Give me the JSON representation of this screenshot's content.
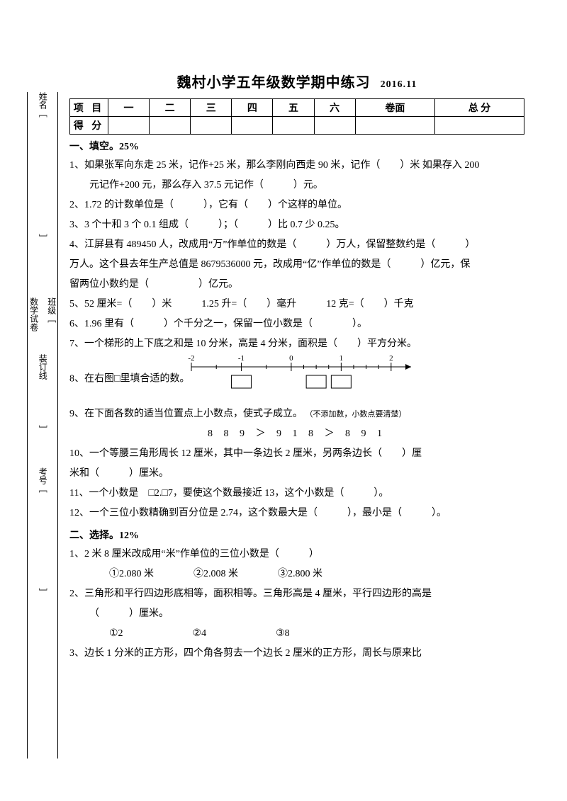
{
  "title": "魏村小学五年级数学期中练习",
  "title_date": "2016.11",
  "sideband": {
    "name_label": "姓名﹇",
    "class_label1": "数学试卷",
    "class_label2": "班级﹇",
    "binding": "装订线",
    "binding2": "﹈",
    "num_label": "考号﹇",
    "dash1": "﹈",
    "dash2": "﹈"
  },
  "score_table": {
    "headers": [
      "项 目",
      "一",
      "二",
      "三",
      "四",
      "五",
      "六",
      "卷面",
      "总 分"
    ],
    "row_label": "得 分"
  },
  "sect1": "一、填空。25%",
  "q1a": "1、如果张军向东走 25 米，记作+25 米，那么李刚向西走 90 米，记作（　　）米 如果存入 200",
  "q1b": "元记作+200 元，那么存入 37.5 元记作（　　　）元。",
  "q2": "2、1.72 的计数单位是（　　　），它有（　　）个这样的单位。",
  "q3": "3、3 个十和 3 个 0.1 组成（　　　）；（　　　）比 0.7 少 0.25。",
  "q4a": "4、江屏县有 489450 人，改成用“万”作单位的数是（　　　）万人，保留整数约是（　　　）",
  "q4b": "万人。这个县去年生产总值是 8679536000 元，改成用“亿”作单位的数是（　　　）亿元，保",
  "q4c": "留两位小数约是（　　　　　）亿元。",
  "q5": "5、52 厘米=（　　）米　　　1.25 升=（　　）毫升　　　12 克=（　　）千克",
  "q6": "6、1.96 里有（　　　）个千分之一，保留一位小数是（　　　　）。",
  "q7": "7、一个梯形的上下底之和是 10 分米，高是 4 分米，面积是（　　）平方分米。",
  "q8": "8、在右图□里填合适的数。",
  "q9": "9、在下面各数的适当位置点上小数点，使式子成立。",
  "q9note": "（不添加数，小数点要清楚）",
  "q9expr": "8 8 9 ＞ 9 1 8 ＞ 8 9 1",
  "q10a": "10、一个等腰三角形周长 12 厘米，其中一条边长 2 厘米，另两条边长（　　）厘",
  "q10b": "米和（　　　）厘米。",
  "q11": "11、一个小数是　□2.□7，要使这个数最接近 13，这个小数是（　　　）。",
  "q12": "12、一个三位小数精确到百分位是 2.74，这个数最大是（　　　），最小是（　　　）。",
  "sect2": "二、选择。12%",
  "s2q1": "1、2 米 8 厘米改成用“米”作单位的三位小数是（　　　）",
  "s2q1opts": "①2.080 米　　　　②2.008 米　　　　③2.800 米",
  "s2q2a": "2、三角形和平行四边形底相等，面积相等。三角形高是 4 厘米，平行四边形的高是",
  "s2q2b": "（　　　）厘米。",
  "s2q2opts": "①2　　　　　　　②4　　　　　　　③8",
  "s2q3": "3、边长 1 分米的正方形，四个角各剪去一个边长 2 厘米的正方形，周长与原来比",
  "numberline": {
    "xstart": -2,
    "xend": 2.4,
    "major_ticks": [
      -2,
      -1,
      0,
      1,
      2
    ],
    "minor_ticks": [
      -1.5,
      -0.5,
      0.25,
      0.5,
      0.75,
      1.25,
      1.5,
      1.75
    ],
    "labels": [
      {
        "x": -2,
        "t": "-2"
      },
      {
        "x": -1,
        "t": "-1"
      },
      {
        "x": 0,
        "t": "0"
      },
      {
        "x": 1,
        "t": "1"
      },
      {
        "x": 2,
        "t": "2"
      }
    ],
    "boxes_at": [
      -1,
      0.5,
      1
    ],
    "line_color": "#000000",
    "text_color": "#000000",
    "box_color": "#000000"
  }
}
